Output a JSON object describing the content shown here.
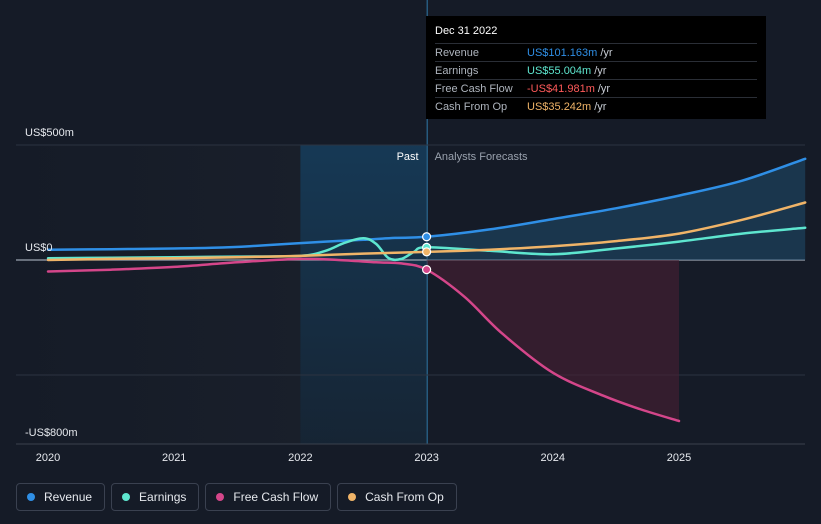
{
  "colors": {
    "background": "#151b27",
    "revenue": "#2f8fe6",
    "earnings": "#5ee6cf",
    "free_cash_flow": "#d4468a",
    "cash_from_op": "#f0b468",
    "negative": "#ff5a5a"
  },
  "tooltip": {
    "date": "Dec 31 2022",
    "rows": [
      {
        "label": "Revenue",
        "value": "US$101.163m",
        "unit": "/yr"
      },
      {
        "label": "Earnings",
        "value": "US$55.004m",
        "unit": "/yr"
      },
      {
        "label": "Free Cash Flow",
        "value": "-US$41.981m",
        "unit": "/yr"
      },
      {
        "label": "Cash From Op",
        "value": "US$35.242m",
        "unit": "/yr"
      }
    ]
  },
  "legend": [
    {
      "label": "Revenue"
    },
    {
      "label": "Earnings"
    },
    {
      "label": "Free Cash Flow"
    },
    {
      "label": "Cash From Op"
    }
  ],
  "chart_data": {
    "type": "line",
    "title": "",
    "xlabel": "",
    "ylabel": "",
    "x_ticks": [
      "2020",
      "2021",
      "2022",
      "2023",
      "2024",
      "2025"
    ],
    "xlim": [
      2019.8,
      2026.0
    ],
    "ylim": [
      -800,
      500
    ],
    "y_labels": [
      {
        "value": 500,
        "label": "US$500m"
      },
      {
        "value": 0,
        "label": "US$0"
      },
      {
        "value": -800,
        "label": "-US$800m"
      }
    ],
    "grid_values": [
      500,
      0,
      -500
    ],
    "divider_x": 2023.0,
    "past_label": "Past",
    "forecast_label": "Analysts Forecasts",
    "highlight_range": [
      2022.0,
      2023.0
    ],
    "series": [
      {
        "name": "Revenue",
        "key": "revenue",
        "x": [
          2020.0,
          2020.5,
          2021.0,
          2021.3,
          2021.6,
          2021.9,
          2022.2,
          2022.5,
          2022.75,
          2023.0,
          2023.5,
          2024.0,
          2024.5,
          2025.0,
          2025.5,
          2026.0
        ],
        "y": [
          45,
          47,
          50,
          53,
          60,
          70,
          80,
          88,
          96,
          101,
          133,
          178,
          225,
          280,
          345,
          440
        ]
      },
      {
        "name": "Earnings",
        "key": "earnings",
        "x": [
          2020.0,
          2020.5,
          2021.0,
          2021.5,
          2022.0,
          2022.2,
          2022.35,
          2022.5,
          2022.6,
          2022.7,
          2022.8,
          2022.9,
          2023.0,
          2023.5,
          2024.0,
          2024.5,
          2025.0,
          2025.5,
          2026.0
        ],
        "y": [
          8,
          10,
          12,
          15,
          18,
          40,
          75,
          95,
          70,
          8,
          5,
          35,
          55,
          40,
          25,
          50,
          80,
          115,
          140
        ]
      },
      {
        "name": "Free Cash Flow",
        "key": "free_cash_flow",
        "x": [
          2020.0,
          2020.5,
          2021.0,
          2021.5,
          2022.0,
          2022.3,
          2022.6,
          2022.8,
          2023.0,
          2023.3,
          2023.6,
          2024.0,
          2024.4,
          2024.7,
          2025.0
        ],
        "y": [
          -50,
          -42,
          -30,
          -10,
          5,
          0,
          -10,
          -15,
          -42,
          -160,
          -320,
          -490,
          -590,
          -650,
          -700
        ]
      },
      {
        "name": "Cash From Op",
        "key": "cash_from_op",
        "x": [
          2020.0,
          2020.5,
          2021.0,
          2021.5,
          2022.0,
          2022.5,
          2023.0,
          2023.5,
          2024.0,
          2024.5,
          2025.0,
          2025.5,
          2026.0
        ],
        "y": [
          0,
          5,
          8,
          12,
          18,
          28,
          35,
          45,
          60,
          82,
          115,
          175,
          250
        ]
      }
    ],
    "tooltip_x": 2023.0,
    "point_values": {
      "revenue": 101.163,
      "earnings": 55.004,
      "free_cash_flow": -41.981,
      "cash_from_op": 35.242
    }
  }
}
